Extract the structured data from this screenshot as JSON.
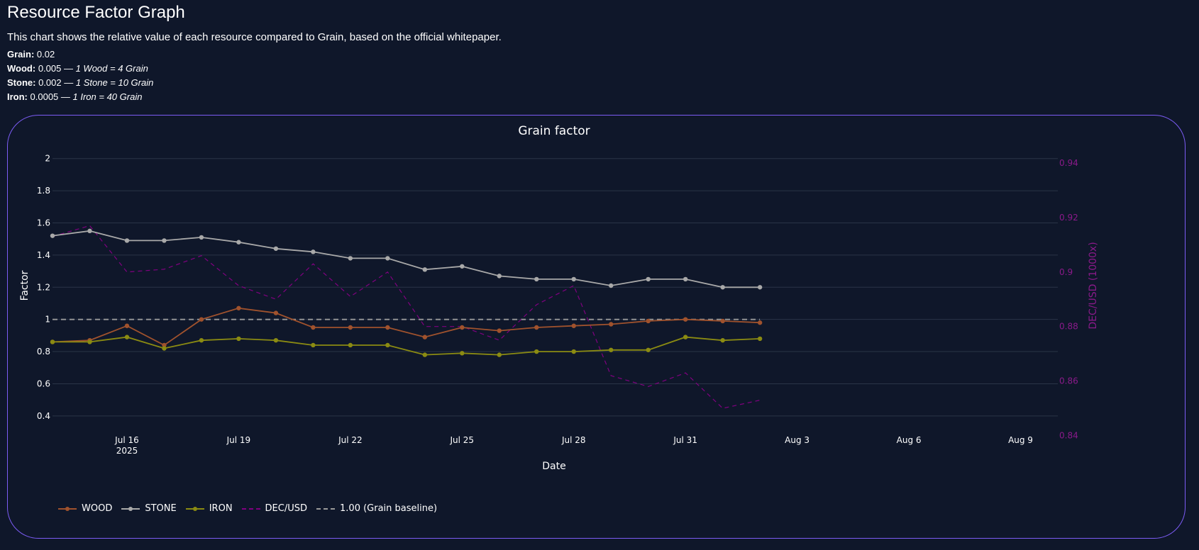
{
  "page": {
    "title": "Resource Factor Graph",
    "description": "This chart shows the relative value of each resource compared to Grain, based on the official whitepaper.",
    "resources": [
      {
        "name": "Grain:",
        "value": "0.02",
        "ratio": ""
      },
      {
        "name": "Wood:",
        "value": "0.005 —",
        "ratio": "1 Wood = 4 Grain"
      },
      {
        "name": "Stone:",
        "value": "0.002 —",
        "ratio": "1 Stone = 10 Grain"
      },
      {
        "name": "Iron:",
        "value": "0.0005 —",
        "ratio": "1 Iron = 40 Grain"
      }
    ]
  },
  "colors": {
    "background": "#0f172a",
    "card_border": "#7c5cf5",
    "grid": "#2a3447",
    "wood": "#a0522d",
    "stone": "#a9a9a9",
    "iron": "#8b8b12",
    "dec_usd": "#800080",
    "baseline": "#9a9a9a",
    "right_axis": "#8a1a8a"
  },
  "chart_data": {
    "type": "line",
    "title": "Grain factor",
    "xlabel": "Date",
    "ylabel": "Factor",
    "y2label": "DEC/USD (1000x)",
    "x_tick_labels": [
      "Jul 16\n2025",
      "Jul 19",
      "Jul 22",
      "Jul 25",
      "Jul 28",
      "Jul 31",
      "Aug 3",
      "Aug 6",
      "Aug 9"
    ],
    "x_range": [
      "2025-07-14",
      "2025-08-10"
    ],
    "ylim": [
      0.32,
      2.1
    ],
    "y_ticks": [
      0.4,
      0.6,
      0.8,
      1,
      1.2,
      1.4,
      1.6,
      1.8,
      2
    ],
    "y2lim": [
      0.8425,
      0.9475
    ],
    "y2_ticks": [
      0.84,
      0.86,
      0.88,
      0.9,
      0.92,
      0.94
    ],
    "grid": true,
    "legend_position": "bottom-left",
    "x": [
      "2025-07-14",
      "2025-07-15",
      "2025-07-16",
      "2025-07-17",
      "2025-07-18",
      "2025-07-19",
      "2025-07-20",
      "2025-07-21",
      "2025-07-22",
      "2025-07-23",
      "2025-07-24",
      "2025-07-25",
      "2025-07-26",
      "2025-07-27",
      "2025-07-28",
      "2025-07-29",
      "2025-07-30",
      "2025-07-31",
      "2025-08-01",
      "2025-08-02"
    ],
    "series": [
      {
        "name": "WOOD",
        "axis": "y",
        "style": "solid",
        "markers": true,
        "values": [
          0.86,
          0.87,
          0.96,
          0.84,
          1.0,
          1.07,
          1.04,
          0.95,
          0.95,
          0.95,
          0.89,
          0.95,
          0.93,
          0.95,
          0.96,
          0.97,
          0.99,
          1.0,
          0.99,
          0.98
        ]
      },
      {
        "name": "STONE",
        "axis": "y",
        "style": "solid",
        "markers": true,
        "values": [
          1.52,
          1.55,
          1.49,
          1.49,
          1.51,
          1.48,
          1.44,
          1.42,
          1.38,
          1.38,
          1.31,
          1.33,
          1.27,
          1.25,
          1.25,
          1.21,
          1.25,
          1.25,
          1.2,
          1.2
        ]
      },
      {
        "name": "IRON",
        "axis": "y",
        "style": "solid",
        "markers": true,
        "values": [
          0.86,
          0.86,
          0.89,
          0.82,
          0.87,
          0.88,
          0.87,
          0.84,
          0.84,
          0.84,
          0.78,
          0.79,
          0.78,
          0.8,
          0.8,
          0.81,
          0.81,
          0.89,
          0.87,
          0.88
        ]
      },
      {
        "name": "DEC/USD",
        "axis": "y2",
        "style": "dashed",
        "markers": false,
        "values": [
          0.913,
          0.917,
          0.9,
          0.901,
          0.906,
          0.895,
          0.89,
          0.903,
          0.891,
          0.9,
          0.88,
          0.88,
          0.875,
          0.888,
          0.895,
          0.862,
          0.858,
          0.863,
          0.85,
          0.853
        ]
      },
      {
        "name": "1.00 (Grain baseline)",
        "axis": "y",
        "style": "dashed",
        "markers": false,
        "values": [
          1,
          1,
          1,
          1,
          1,
          1,
          1,
          1,
          1,
          1,
          1,
          1,
          1,
          1,
          1,
          1,
          1,
          1,
          1,
          1
        ]
      }
    ]
  }
}
